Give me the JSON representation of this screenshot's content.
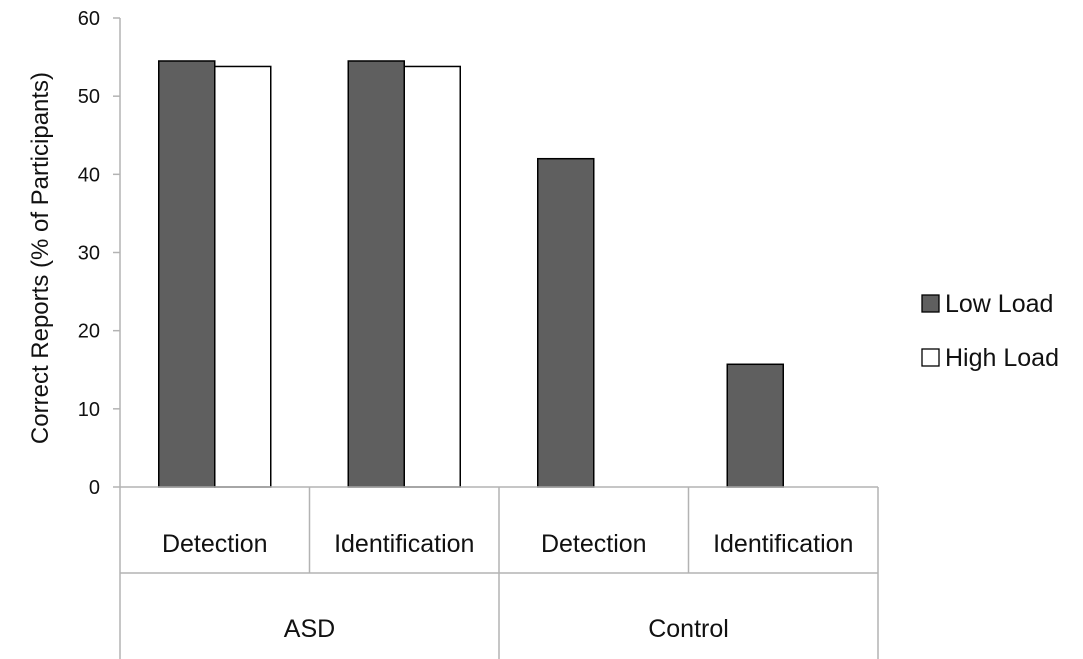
{
  "chart_data": {
    "type": "bar",
    "categories": [
      "Detection",
      "Identification",
      "Detection",
      "Identification"
    ],
    "groups": [
      "ASD",
      "Control"
    ],
    "group_spans": [
      [
        0,
        2
      ],
      [
        2,
        4
      ]
    ],
    "series": [
      {
        "name": "Low Load",
        "values": [
          54.5,
          54.5,
          42,
          15.7
        ],
        "color": "#5f5f5f"
      },
      {
        "name": "High Load",
        "values": [
          53.8,
          53.8,
          null,
          null
        ],
        "color": "#ffffff"
      }
    ],
    "ylabel": "Correct Reports (% of Participants)",
    "ylim": [
      0,
      60
    ],
    "yticks": [
      0,
      10,
      20,
      30,
      40,
      50,
      60
    ],
    "grid": false,
    "legend_position": "right"
  }
}
